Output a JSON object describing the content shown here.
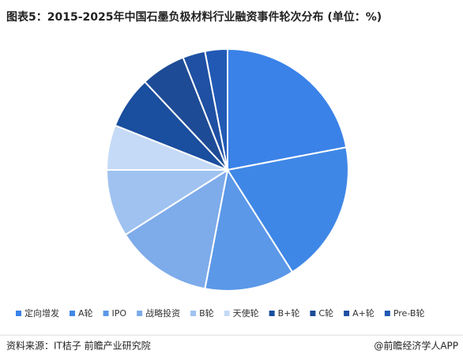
{
  "chart_data": {
    "type": "pie",
    "title": "图表5：2015-2025年中国石墨负极材料行业融资事件轮次分布 (单位：%)",
    "categories": [
      "定向增发",
      "A轮",
      "IPO",
      "战略投资",
      "B轮",
      "天使轮",
      "B+轮",
      "C轮",
      "A+轮",
      "Pre-B轮"
    ],
    "values": [
      22,
      19,
      12,
      13,
      9,
      6,
      7,
      6,
      3,
      3
    ],
    "colors": [
      "#3a82e8",
      "#3f87e6",
      "#5b98e8",
      "#7eabea",
      "#9fc2f0",
      "#c5daf6",
      "#1a4e9e",
      "#1e4b95",
      "#1f50a3",
      "#2159b5"
    ],
    "source": "资料来源：IT桔子 前瞻产业研究院",
    "credit": "@前瞻经济学人APP"
  }
}
